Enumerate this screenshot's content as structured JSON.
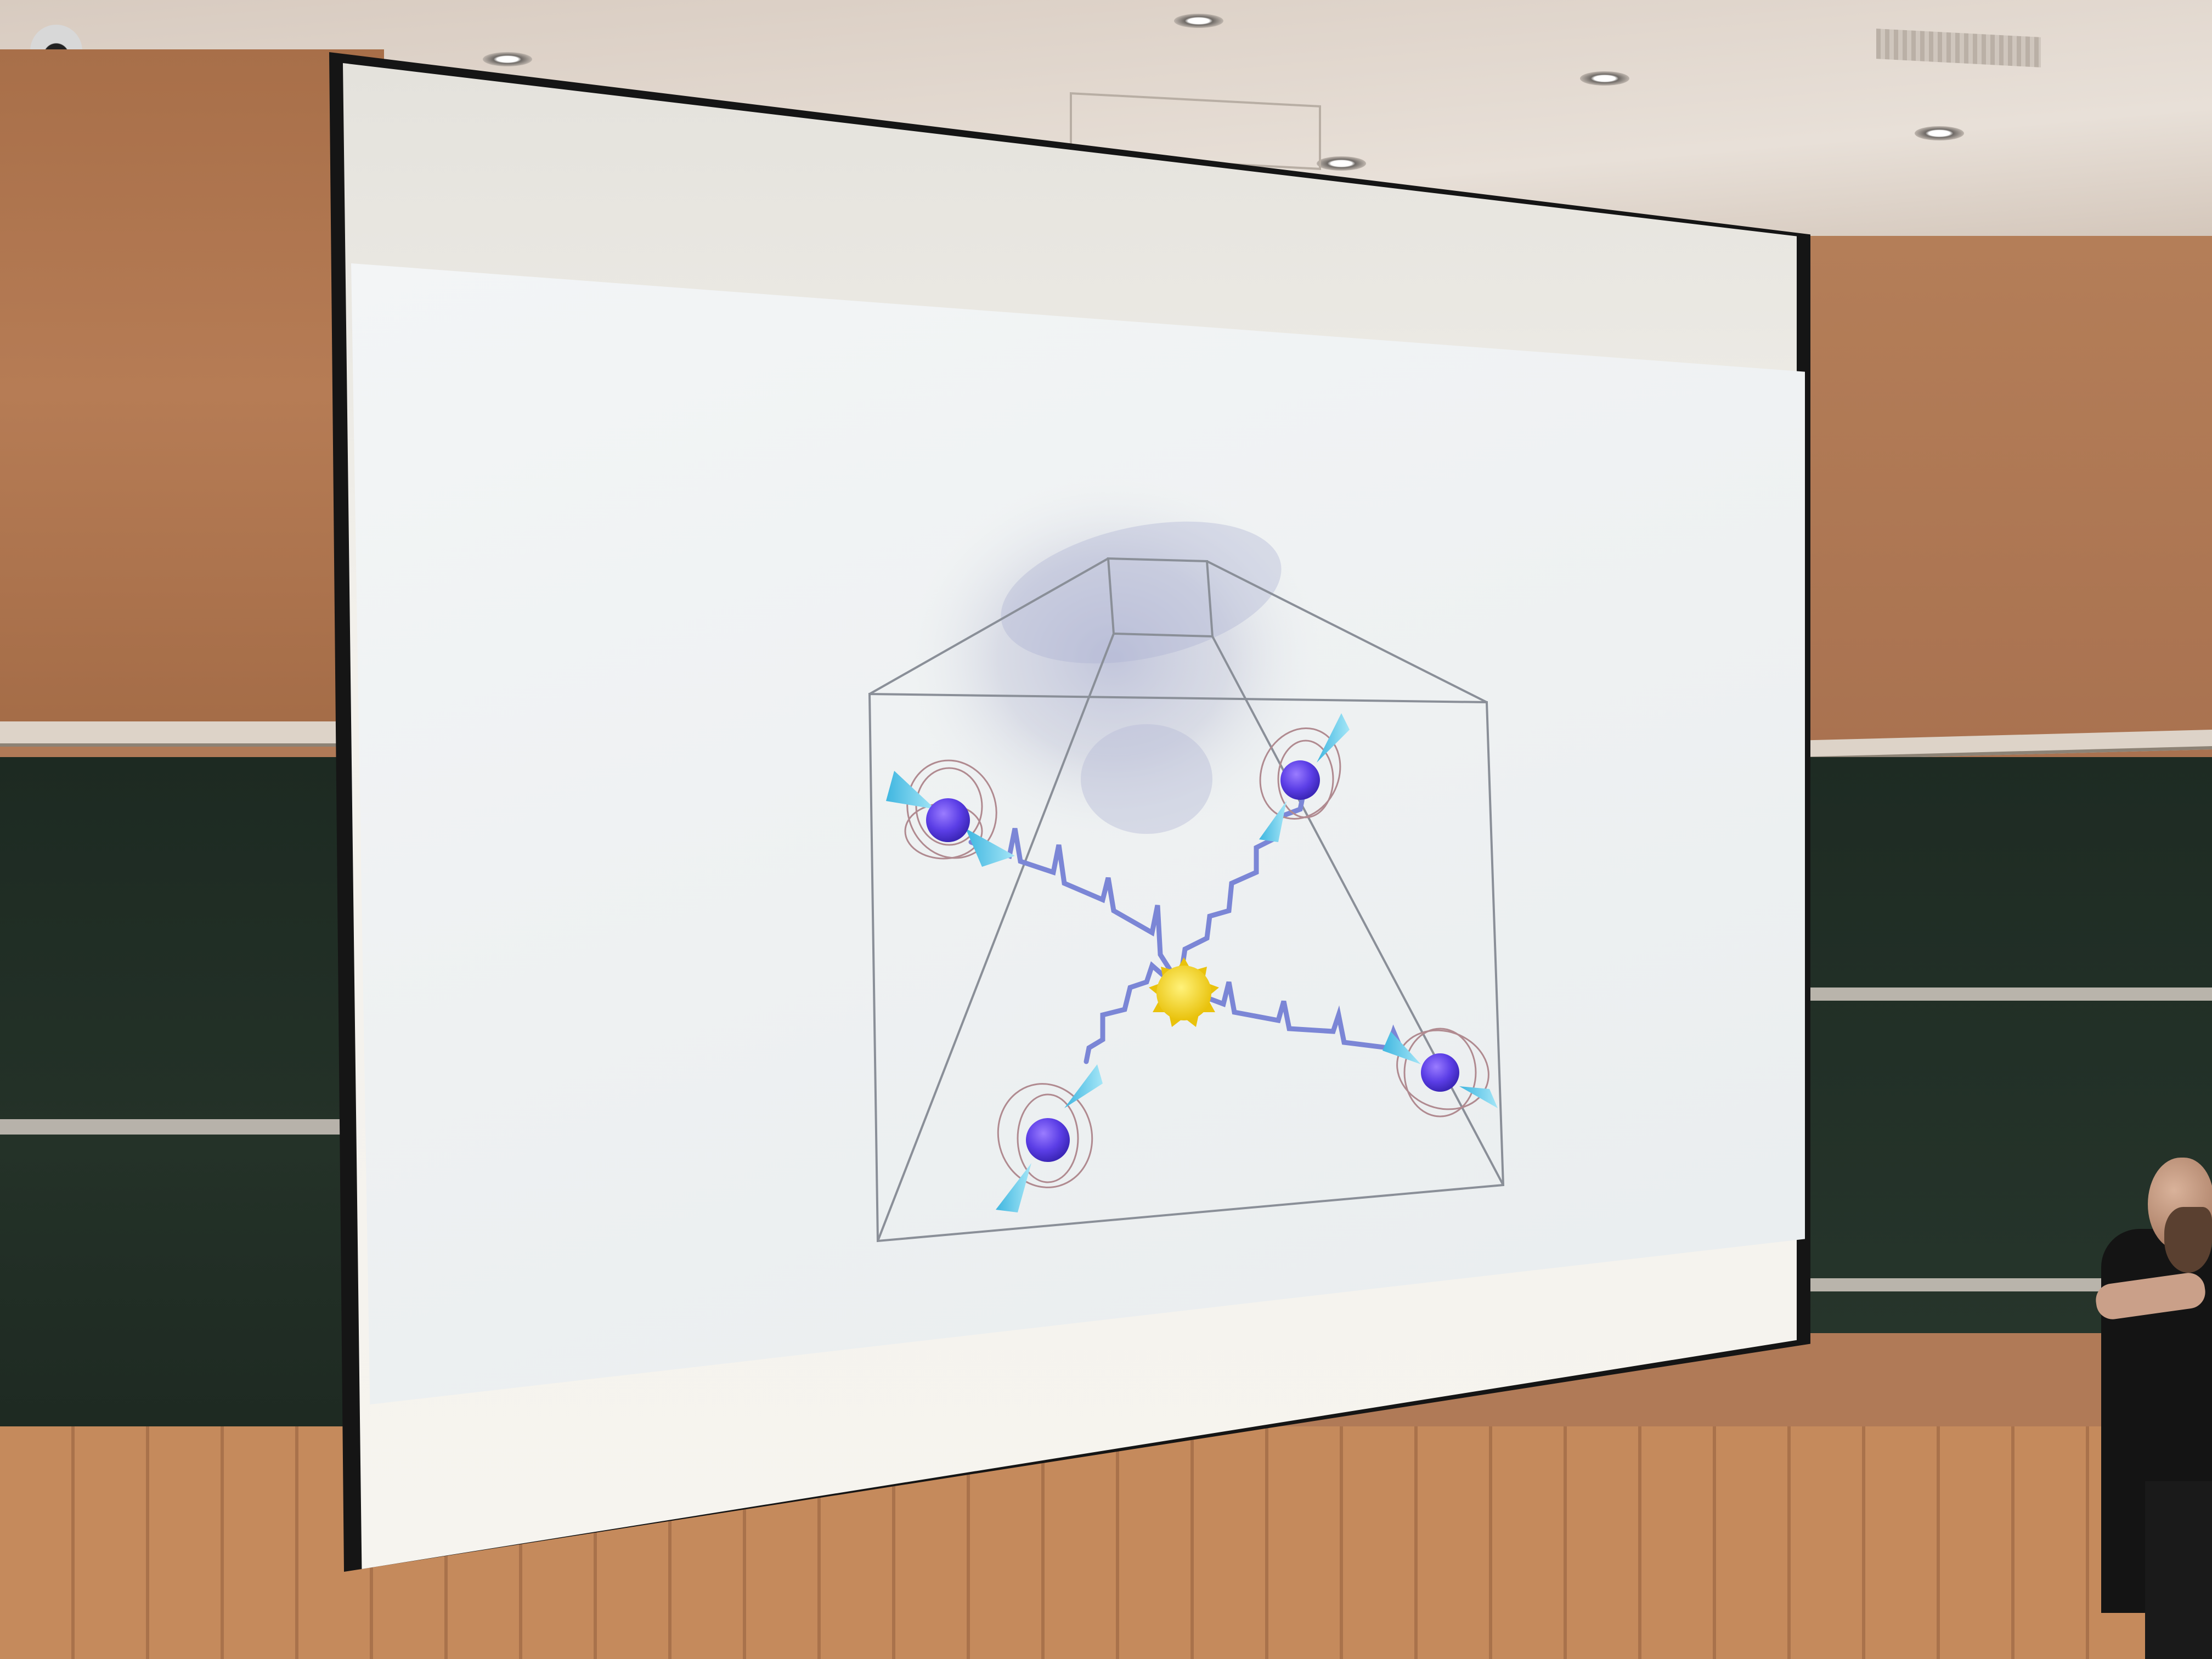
{
  "scene": {
    "description_type": "photo-of-projected-slide",
    "colors": {
      "wall": "#b07a57",
      "chalkboard": "#1f2c24",
      "screen": "#f3f1ec",
      "pulsar": "#6a4bf0",
      "beam": "#5cc5e6",
      "sun": "#f4d21f",
      "gw_line": "#7b86d6",
      "wireframe": "#8a8f98",
      "field_lines": "#b08a90"
    }
  },
  "slide": {
    "pulsars": [
      {
        "name": "pulsar-top-left"
      },
      {
        "name": "pulsar-top-right"
      },
      {
        "name": "pulsar-bottom-left"
      },
      {
        "name": "pulsar-bottom-right"
      }
    ],
    "center_object": "sun-icon",
    "background": "galaxy-image"
  }
}
